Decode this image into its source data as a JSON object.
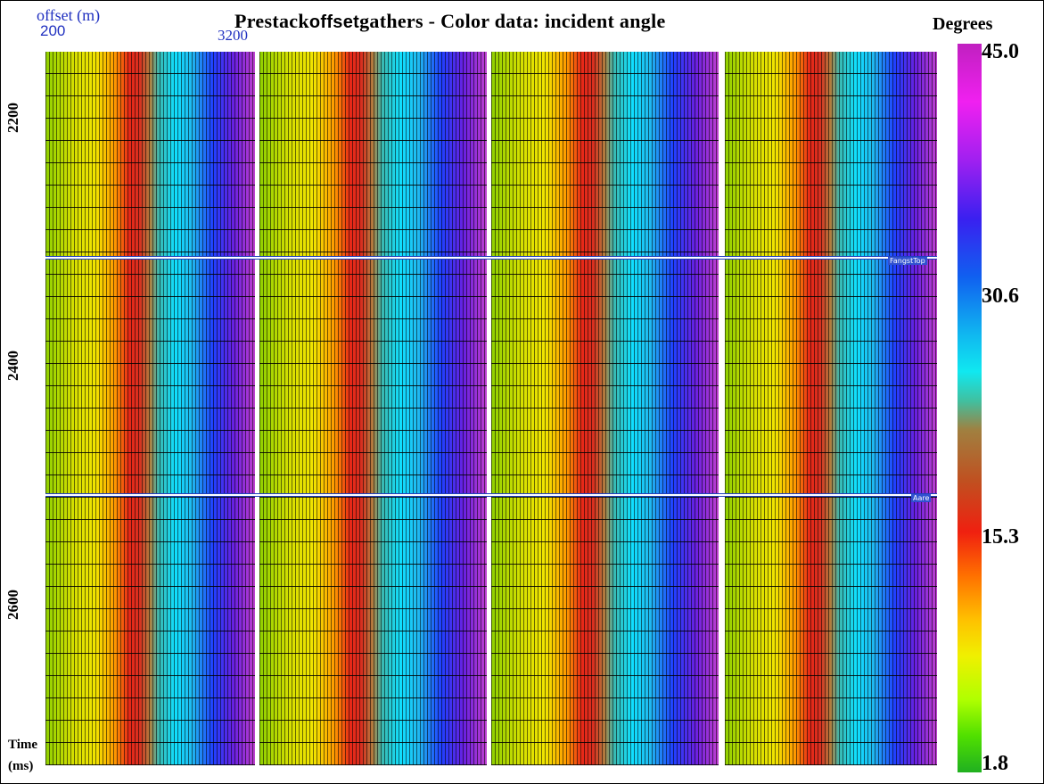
{
  "title": {
    "prefix": "Prestack",
    "emphasis": "offset",
    "suffix": "gathers - Color data: incident angle"
  },
  "offset_axis": {
    "label": "offset (m)",
    "ticks": [
      "200",
      "3200"
    ]
  },
  "time_axis": {
    "label": "Time",
    "unit": "(ms)",
    "ticks": [
      "2200",
      "2400",
      "2600"
    ]
  },
  "colorbar": {
    "title": "Degrees",
    "ticks": [
      "45.0",
      "30.6",
      "15.3",
      "1.8"
    ]
  },
  "horizons": [
    "FangstTop",
    "Aare"
  ]
}
